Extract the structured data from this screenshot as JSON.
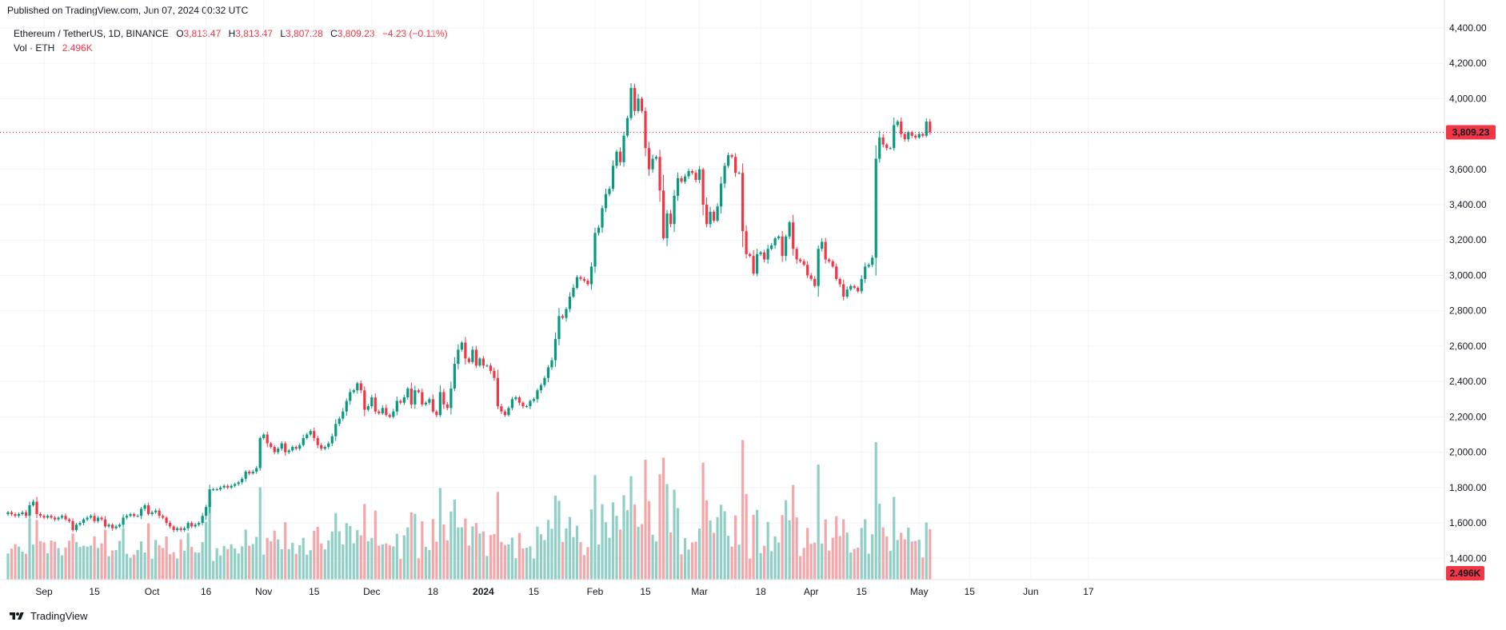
{
  "published": "Published on TradingView.com, Jun 07, 2024 00:32 UTC",
  "legend": {
    "symbol": "Ethereum / TetherUS, 1D, BINANCE",
    "o_label": "O",
    "o_value": "3,813.47",
    "h_label": "H",
    "h_value": "3,813.47",
    "l_label": "L",
    "l_value": "3,807.28",
    "c_label": "C",
    "c_value": "3,809.23",
    "change": "−4.23 (−0.11%)",
    "vol_label": "Vol · ETH",
    "vol_value": "2.496K"
  },
  "footer": {
    "brand": "TradingView"
  },
  "colors": {
    "up": "#089981",
    "down": "#f23645",
    "vol_up": "#8fcfc6",
    "vol_down": "#f5a6a9",
    "grid": "#f0f3fa"
  },
  "chart_data": {
    "type": "candlestick",
    "price_axis": {
      "ticks": [
        "4,400.00",
        "4,200.00",
        "4,000.00",
        "3,800.00",
        "3,600.00",
        "3,400.00",
        "3,200.00",
        "3,000.00",
        "2,800.00",
        "2,600.00",
        "2,400.00",
        "2,200.00",
        "2,000.00",
        "1,800.00",
        "1,600.00",
        "1,400.00"
      ],
      "range": [
        1320,
        4440
      ]
    },
    "last_price_label": "3,809.23",
    "last_price": 3809.23,
    "volume_label": "2.496K",
    "time_axis": [
      "Sep",
      "15",
      "Oct",
      "16",
      "Nov",
      "15",
      "Dec",
      "18",
      "2024",
      "15",
      "Feb",
      "15",
      "Mar",
      "18",
      "Apr",
      "15",
      "May",
      "15",
      "Jun",
      "17"
    ],
    "time_axis_bold": [
      "2024"
    ],
    "time_axis_dates": [
      "2023-09-01",
      "2023-09-15",
      "2023-10-01",
      "2023-10-16",
      "2023-11-01",
      "2023-11-15",
      "2023-12-01",
      "2023-12-18",
      "2024-01-01",
      "2024-01-15",
      "2024-02-01",
      "2024-02-15",
      "2024-03-01",
      "2024-03-18",
      "2024-04-01",
      "2024-04-15",
      "2024-05-01",
      "2024-05-15",
      "2024-06-01",
      "2024-06-17"
    ],
    "start_date": "2023-08-22",
    "closes": [
      1660,
      1650,
      1640,
      1650,
      1660,
      1640,
      1700,
      1720,
      1650,
      1640,
      1630,
      1640,
      1630,
      1620,
      1630,
      1640,
      1620,
      1610,
      1560,
      1590,
      1600,
      1620,
      1630,
      1640,
      1610,
      1630,
      1620,
      1580,
      1590,
      1570,
      1580,
      1590,
      1630,
      1640,
      1650,
      1640,
      1640,
      1680,
      1700,
      1650,
      1660,
      1670,
      1640,
      1630,
      1600,
      1580,
      1560,
      1570,
      1560,
      1570,
      1600,
      1580,
      1590,
      1600,
      1640,
      1690,
      1790,
      1790,
      1790,
      1800,
      1810,
      1800,
      1810,
      1820,
      1830,
      1850,
      1890,
      1880,
      1890,
      1910,
      2080,
      2100,
      2050,
      2030,
      2000,
      2020,
      2050,
      2000,
      2010,
      2030,
      2020,
      2040,
      2080,
      2100,
      2120,
      2080,
      2040,
      2020,
      2030,
      2050,
      2090,
      2160,
      2190,
      2230,
      2290,
      2340,
      2350,
      2390,
      2350,
      2240,
      2260,
      2310,
      2230,
      2220,
      2250,
      2210,
      2200,
      2230,
      2290,
      2280,
      2310,
      2360,
      2270,
      2350,
      2340,
      2270,
      2280,
      2300,
      2230,
      2210,
      2340,
      2270,
      2250,
      2360,
      2500,
      2580,
      2620,
      2530,
      2510,
      2580,
      2490,
      2530,
      2490,
      2490,
      2460,
      2420,
      2260,
      2230,
      2210,
      2250,
      2300,
      2310,
      2280,
      2260,
      2260,
      2290,
      2300,
      2350,
      2380,
      2420,
      2480,
      2520,
      2640,
      2770,
      2760,
      2810,
      2880,
      2930,
      2990,
      2980,
      2970,
      2950,
      3050,
      3240,
      3270,
      3380,
      3460,
      3490,
      3620,
      3700,
      3640,
      3790,
      3890,
      4060,
      3930,
      4000,
      3930,
      3720,
      3600,
      3660,
      3670,
      3480,
      3210,
      3350,
      3290,
      3450,
      3550,
      3530,
      3560,
      3590,
      3580,
      3540,
      3600,
      3400,
      3290,
      3360,
      3310,
      3390,
      3520,
      3620,
      3680,
      3670,
      3580,
      3580,
      3250,
      3120,
      3110,
      3010,
      3120,
      3130,
      3090,
      3150,
      3170,
      3210,
      3220,
      3110,
      3220,
      3300,
      3150,
      3090,
      3080,
      3060,
      3000,
      2980,
      2940,
      3150,
      3190,
      3090,
      3080,
      3050,
      2980,
      2950,
      2880,
      2920,
      2940,
      2930,
      2910,
      2980,
      3050,
      3060,
      3100,
      3660,
      3780,
      3740,
      3720,
      3720,
      3850,
      3870,
      3800,
      3770,
      3810,
      3790,
      3780,
      3800,
      3790,
      3870,
      3809
    ]
  }
}
